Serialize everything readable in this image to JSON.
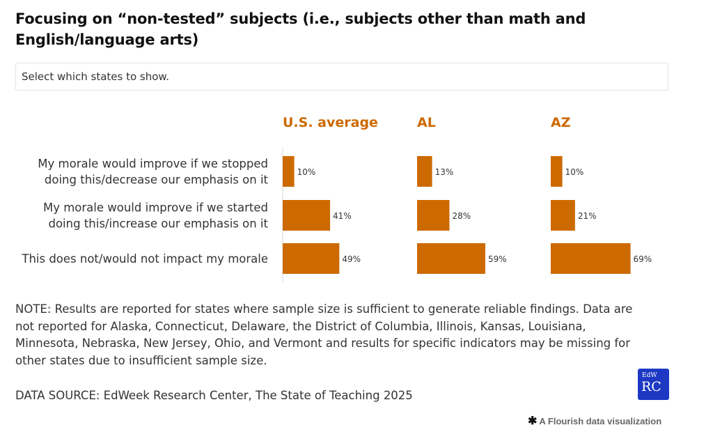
{
  "title": "Focusing on “non-tested” subjects (i.e., subjects other than math and English/language arts)",
  "selector": {
    "label": "Select which states to show."
  },
  "chart_data": {
    "type": "bar",
    "orientation": "horizontal",
    "categories": [
      [
        "My morale would improve if we stopped",
        "doing this/decrease our emphasis on it"
      ],
      [
        "My morale would improve if we started",
        "doing this/increase our emphasis on it"
      ],
      [
        "This does not/would not impact my morale"
      ]
    ],
    "panels": [
      {
        "name": "U.S. average",
        "values": [
          10,
          41,
          49
        ],
        "labels": [
          "10%",
          "41%",
          "49%"
        ]
      },
      {
        "name": "AL",
        "values": [
          13,
          28,
          59
        ],
        "labels": [
          "13%",
          "28%",
          "59%"
        ]
      },
      {
        "name": "AZ",
        "values": [
          10,
          21,
          69
        ],
        "labels": [
          "10%",
          "21%",
          "69%"
        ]
      }
    ],
    "xlim": [
      0,
      100
    ],
    "unit": "%",
    "bar_color": "#cc6a00",
    "header_color": "#cc6a00",
    "grid": false,
    "legend": "none"
  },
  "note": "NOTE: Results are reported for states where sample size is sufficient to generate reliable findings. Data are not reported for Alaska, Connecticut, Delaware, the District of Columbia, Illinois, Kansas, Louisiana, Minnesota, Nebraska, New Jersey, Ohio, and Vermont and results for specific indicators may be missing for other states due to insufficient sample size.",
  "source": "DATA SOURCE: EdWeek Research Center, The State of Teaching 2025",
  "logo": {
    "line1": "EdW",
    "line2": "RC",
    "color": "#1d39c4"
  },
  "credit": {
    "icon": "flourish-star-icon",
    "text": "A Flourish data visualization"
  }
}
